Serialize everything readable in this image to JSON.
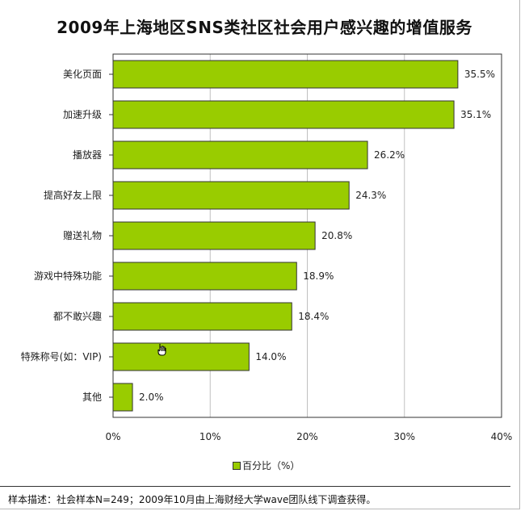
{
  "chart_data": {
    "type": "bar",
    "orientation": "horizontal",
    "title": "2009年上海地区SNS类社区社会用户感兴趣的增值服务",
    "categories": [
      "美化页面",
      "加速升级",
      "播放器",
      "提高好友上限",
      "赠送礼物",
      "游戏中特殊功能",
      "都不敢兴趣",
      "特殊称号(如：VIP)",
      "其他"
    ],
    "values": [
      35.5,
      35.1,
      26.2,
      24.3,
      20.8,
      18.9,
      18.4,
      14.0,
      2.0
    ],
    "value_labels": [
      "35.5%",
      "35.1%",
      "26.2%",
      "24.3%",
      "20.8%",
      "18.9%",
      "18.4%",
      "14.0%",
      "2.0%"
    ],
    "x_ticks": [
      "0%",
      "10%",
      "20%",
      "30%",
      "40%"
    ],
    "xlim": [
      0,
      40
    ],
    "series": [
      {
        "name": "百分比（%）",
        "color": "#99cc00"
      }
    ],
    "legend": "bottom",
    "grid": true
  },
  "note": "样本描述：社会样本N=249；2009年10月由上海财经大学wave团队线下调查获得。"
}
